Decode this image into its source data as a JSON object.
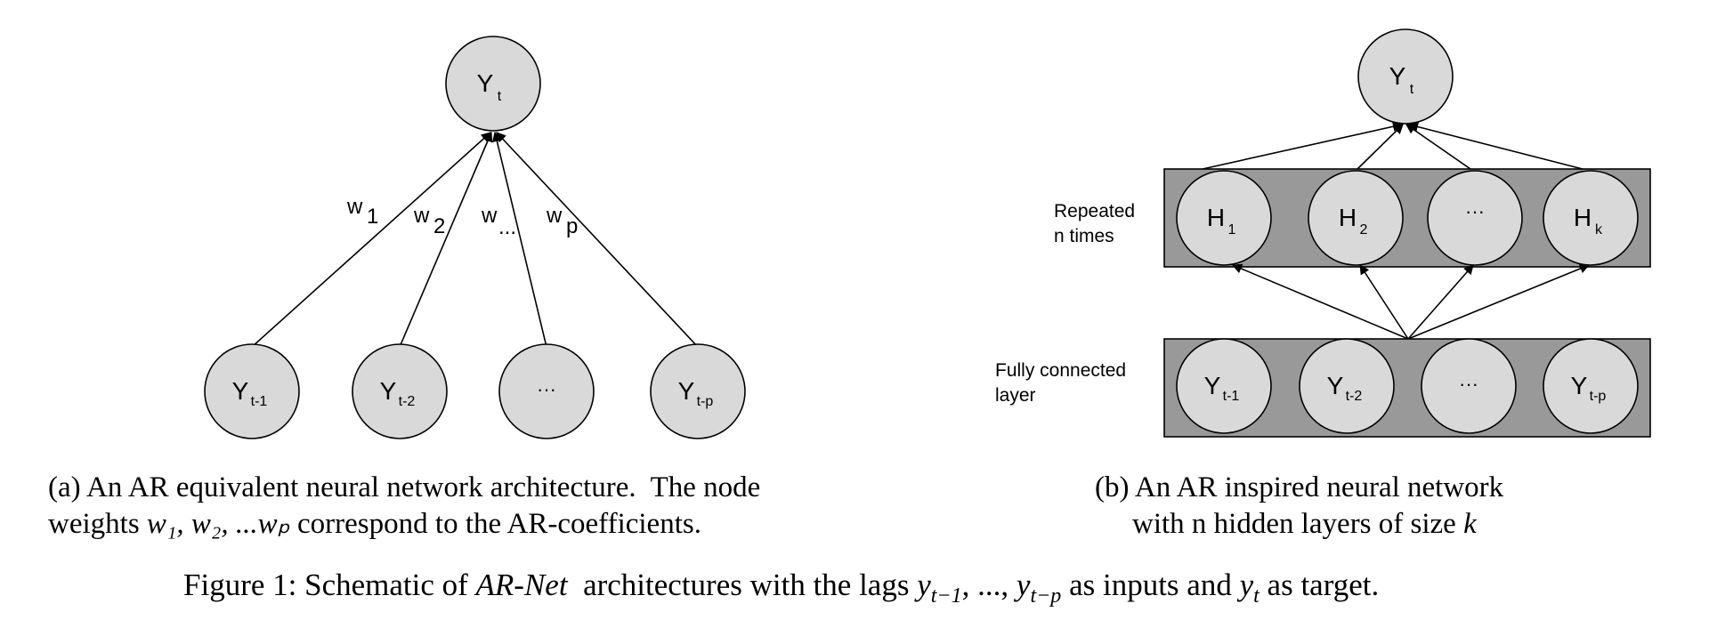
{
  "panel_a": {
    "target_node": {
      "main": "Y",
      "sub": "t"
    },
    "input_nodes": [
      {
        "main": "Y",
        "sub": "t-1"
      },
      {
        "main": "Y",
        "sub": "t-2"
      },
      {
        "main": "···",
        "sub": ""
      },
      {
        "main": "Y",
        "sub": "t-p"
      }
    ],
    "weights": [
      {
        "main": "w",
        "sub": "1"
      },
      {
        "main": "w",
        "sub": "2"
      },
      {
        "main": "w",
        "sub": "..."
      },
      {
        "main": "w",
        "sub": "p"
      }
    ],
    "caption_line1": "(a) An AR equivalent neural network architecture.  The node",
    "caption_line2_pre": "weights ",
    "caption_line2_math": "w₁, w₂, ...wₚ",
    "caption_line2_post": " correspond to the AR-coefficients."
  },
  "panel_b": {
    "target_node": {
      "main": "Y",
      "sub": "t"
    },
    "hidden_label_line1": "Repeated",
    "hidden_label_line2": "n times",
    "hidden_nodes": [
      {
        "main": "H",
        "sub": "1"
      },
      {
        "main": "H",
        "sub": "2"
      },
      {
        "main": "···",
        "sub": ""
      },
      {
        "main": "H",
        "sub": "k"
      }
    ],
    "input_label_line1": "Fully connected",
    "input_label_line2": "layer",
    "input_nodes": [
      {
        "main": "Y",
        "sub": "t-1"
      },
      {
        "main": "Y",
        "sub": "t-2"
      },
      {
        "main": "···",
        "sub": ""
      },
      {
        "main": "Y",
        "sub": "t-p"
      }
    ],
    "caption_line1": "(b) An AR inspired neural network",
    "caption_line2_pre": "with n hidden layers of size ",
    "caption_line2_math": "k"
  },
  "figure_caption": {
    "prefix": "Figure 1: Schematic of ",
    "name": "AR-Net",
    "middle": "  architectures with the lags ",
    "lags": "y_{t−1}, ..., y_{t−p}",
    "lags_main1": "y",
    "lags_sub1": "t−1",
    "lags_sep": ", ..., ",
    "lags_main2": "y",
    "lags_sub2": "t−p",
    "as_inputs": " as inputs and ",
    "target_main": "y",
    "target_sub": "t",
    "suffix": " as target."
  },
  "colors": {
    "node_fill": "#d9d9d9",
    "band_fill": "#999999",
    "stroke": "#000000"
  }
}
